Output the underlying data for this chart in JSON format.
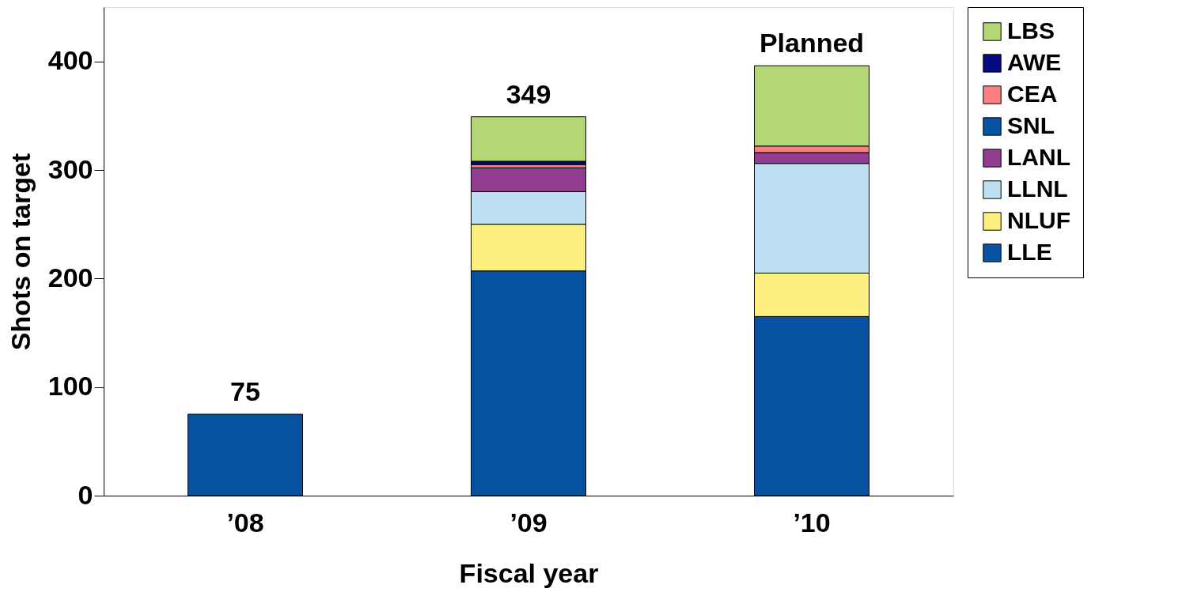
{
  "chart_data": {
    "type": "bar",
    "stacked": true,
    "xlabel": "Fiscal year",
    "ylabel": "Shots on target",
    "categories": [
      "’08",
      "’09",
      "’10"
    ],
    "series": [
      {
        "name": "LLE",
        "color": "#0752a0",
        "values": [
          75,
          207,
          165
        ]
      },
      {
        "name": "NLUF",
        "color": "#fdf07f",
        "values": [
          null,
          43,
          40
        ]
      },
      {
        "name": "LLNL",
        "color": "#bde1f3",
        "values": [
          null,
          30,
          101
        ]
      },
      {
        "name": "LANL",
        "color": "#913d91",
        "values": [
          null,
          22,
          10
        ]
      },
      {
        "name": "SNL",
        "color": "#0752a0",
        "values": [
          null,
          null,
          null
        ]
      },
      {
        "name": "CEA",
        "color": "#fe7f7f",
        "values": [
          null,
          3,
          6
        ]
      },
      {
        "name": "AWE",
        "color": "#050a80",
        "values": [
          null,
          3,
          null
        ]
      },
      {
        "name": "LBS",
        "color": "#b4d674",
        "values": [
          null,
          41,
          74
        ]
      }
    ],
    "ylim": [
      0,
      450
    ],
    "yticks": [
      0,
      100,
      200,
      300,
      400
    ],
    "grid": false,
    "legend": "right",
    "annotations": [
      {
        "text": "75",
        "x": "’08",
        "y": 75
      },
      {
        "text": "349",
        "x": "’09",
        "y": 349
      },
      {
        "text": "Planned",
        "x": "’10",
        "y": 396
      }
    ]
  }
}
